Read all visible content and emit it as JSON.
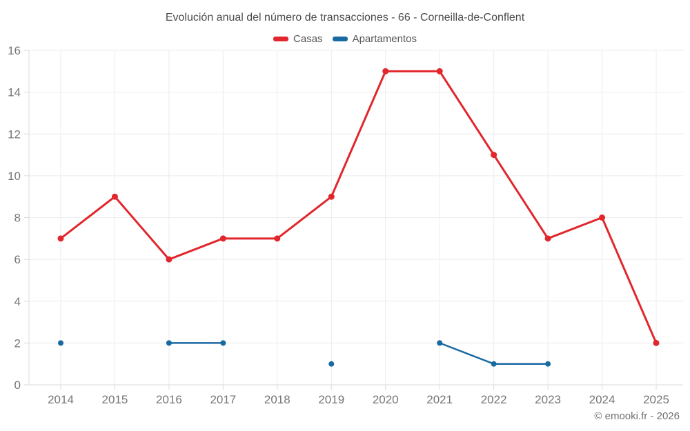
{
  "chart_data": {
    "type": "line",
    "title": "Evolución anual del número de transacciones - 66 - Corneilla-de-Conflent",
    "x": [
      "2014",
      "2015",
      "2016",
      "2017",
      "2018",
      "2019",
      "2020",
      "2021",
      "2022",
      "2023",
      "2024",
      "2025"
    ],
    "series": [
      {
        "name": "Casas",
        "color": "#e1262c",
        "values": [
          7,
          9,
          6,
          7,
          7,
          9,
          15,
          15,
          11,
          7,
          8,
          2
        ]
      },
      {
        "name": "Apartamentos",
        "color": "#1a6aa2",
        "values": [
          2,
          null,
          2,
          2,
          null,
          1,
          null,
          2,
          1,
          1,
          null,
          null
        ]
      }
    ],
    "ylim": [
      0,
      16
    ],
    "yticks": [
      0,
      2,
      4,
      6,
      8,
      10,
      12,
      14,
      16
    ],
    "xlabel": "",
    "ylabel": "",
    "grid": true,
    "legend_position": "top",
    "grid_color": "#ececec",
    "axis_color": "#d9d9d9",
    "tick_label_color": "#757575"
  },
  "footer": {
    "credit": "© emooki.fr - 2026"
  }
}
